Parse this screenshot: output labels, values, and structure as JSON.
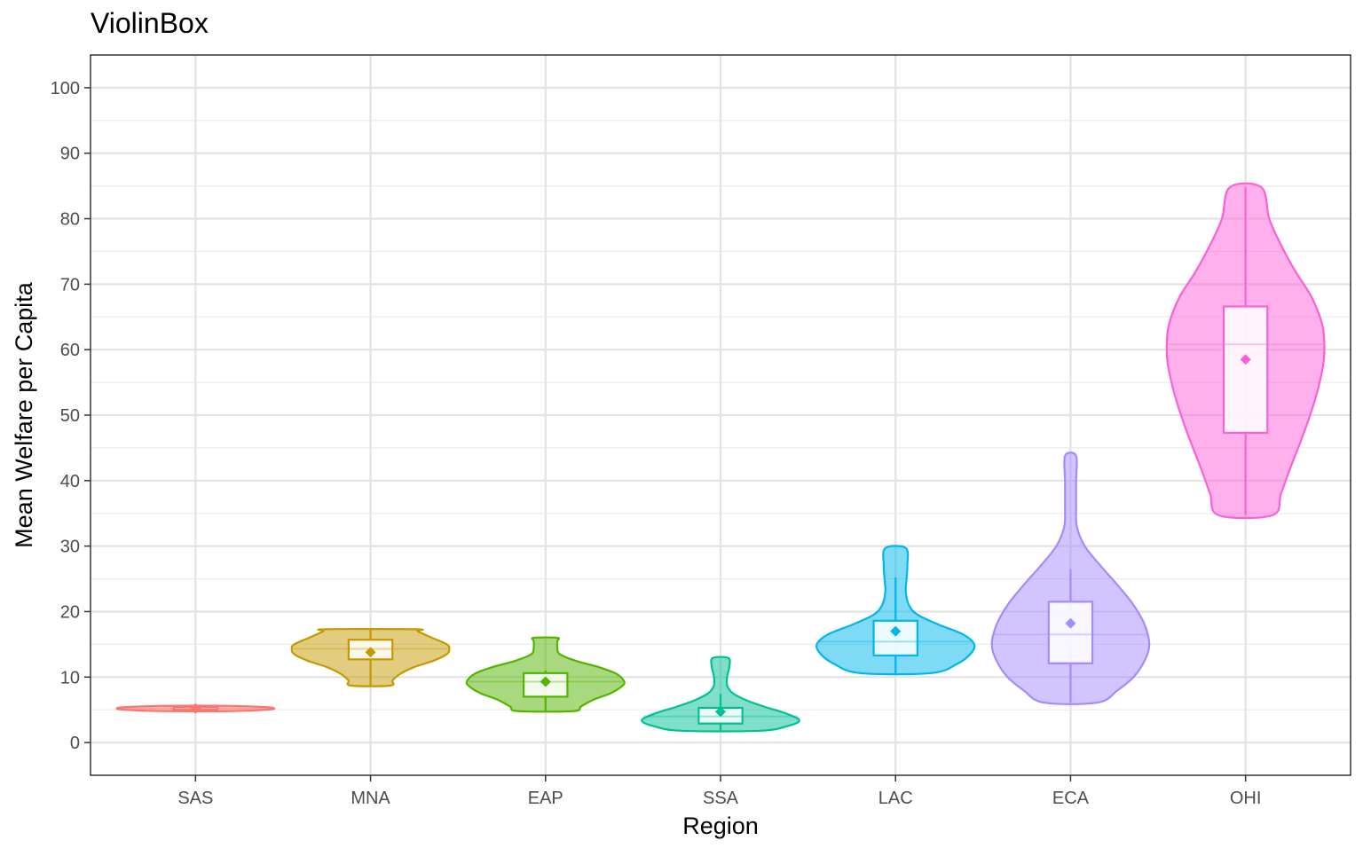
{
  "chart_data": {
    "type": "violin",
    "title": "ViolinBox",
    "xlabel": "Region",
    "ylabel": "Mean Welfare per Capita",
    "categories": [
      "SAS",
      "MNA",
      "EAP",
      "SSA",
      "LAC",
      "ECA",
      "OHI"
    ],
    "ylim": [
      -5,
      105
    ],
    "yticks": [
      0,
      10,
      20,
      30,
      40,
      50,
      60,
      70,
      80,
      90,
      100
    ],
    "grid": true,
    "legend": "none",
    "colors": [
      "#F8766D",
      "#C49A00",
      "#53B400",
      "#00C094",
      "#00B6EB",
      "#A58AFF",
      "#FB61D7"
    ],
    "series": [
      {
        "category": "SAS",
        "violin": {
          "min": 4.8,
          "max": 5.6,
          "median": 5.2,
          "profile": [
            [
              4.8,
              0.45
            ],
            [
              5.0,
              0.9
            ],
            [
              5.2,
              1.0
            ],
            [
              5.4,
              0.9
            ],
            [
              5.6,
              0.45
            ]
          ]
        },
        "box": {
          "q1": 5.0,
          "median": 5.2,
          "q3": 5.4,
          "whisker_low": 4.8,
          "whisker_high": 5.6
        },
        "mean": 5.2
      },
      {
        "category": "MNA",
        "violin": {
          "min": 8.7,
          "max": 17.3,
          "median": 14.3,
          "profile": [
            [
              8.7,
              0.25
            ],
            [
              9.5,
              0.28
            ],
            [
              10.5,
              0.38
            ],
            [
              11.5,
              0.55
            ],
            [
              12.5,
              0.8
            ],
            [
              13.5,
              0.97
            ],
            [
              14.3,
              1.0
            ],
            [
              15.0,
              0.97
            ],
            [
              16.0,
              0.78
            ],
            [
              17.0,
              0.6
            ],
            [
              17.3,
              0.58
            ]
          ]
        },
        "box": {
          "q1": 12.7,
          "median": 14.3,
          "q3": 15.7,
          "whisker_low": 8.7,
          "whisker_high": 17.3
        },
        "mean": 13.8
      },
      {
        "category": "EAP",
        "violin": {
          "min": 4.8,
          "max": 16.0,
          "median": 9.3,
          "profile": [
            [
              4.8,
              0.35
            ],
            [
              5.5,
              0.45
            ],
            [
              6.5,
              0.6
            ],
            [
              7.5,
              0.82
            ],
            [
              8.5,
              0.96
            ],
            [
              9.3,
              1.0
            ],
            [
              10.5,
              0.9
            ],
            [
              11.5,
              0.68
            ],
            [
              12.5,
              0.38
            ],
            [
              13.5,
              0.18
            ],
            [
              14.5,
              0.15
            ],
            [
              15.5,
              0.15
            ],
            [
              16.0,
              0.15
            ]
          ]
        },
        "box": {
          "q1": 7.0,
          "median": 9.3,
          "q3": 10.6,
          "whisker_low": 4.8,
          "whisker_high": 11.0
        },
        "mean": 9.3
      },
      {
        "category": "SSA",
        "violin": {
          "min": 1.8,
          "max": 12.9,
          "median": 4.0,
          "profile": [
            [
              1.8,
              0.5
            ],
            [
              2.5,
              0.85
            ],
            [
              3.4,
              1.0
            ],
            [
              4.5,
              0.82
            ],
            [
              5.5,
              0.55
            ],
            [
              6.5,
              0.32
            ],
            [
              7.5,
              0.16
            ],
            [
              8.5,
              0.09
            ],
            [
              9.5,
              0.08
            ],
            [
              10.5,
              0.09
            ],
            [
              11.5,
              0.11
            ],
            [
              12.9,
              0.1
            ]
          ]
        },
        "box": {
          "q1": 2.9,
          "median": 4.0,
          "q3": 5.3,
          "whisker_low": 1.8,
          "whisker_high": 7.4
        },
        "mean": 4.7
      },
      {
        "category": "LAC",
        "violin": {
          "min": 10.6,
          "max": 29.7,
          "median": 15.4,
          "profile": [
            [
              10.6,
              0.45
            ],
            [
              12.0,
              0.78
            ],
            [
              13.5,
              0.95
            ],
            [
              15.0,
              1.0
            ],
            [
              16.5,
              0.86
            ],
            [
              18.0,
              0.55
            ],
            [
              19.5,
              0.28
            ],
            [
              21.0,
              0.17
            ],
            [
              23.0,
              0.13
            ],
            [
              25.0,
              0.14
            ],
            [
              27.0,
              0.15
            ],
            [
              29.7,
              0.13
            ]
          ]
        },
        "box": {
          "q1": 13.3,
          "median": 15.4,
          "q3": 18.6,
          "whisker_low": 10.6,
          "whisker_high": 25.2
        },
        "mean": 17.0
      },
      {
        "category": "ECA",
        "violin": {
          "min": 6.1,
          "max": 43.8,
          "median": 16.5,
          "profile": [
            [
              6.1,
              0.34
            ],
            [
              8.0,
              0.6
            ],
            [
              10.0,
              0.8
            ],
            [
              12.5,
              0.94
            ],
            [
              15.0,
              1.0
            ],
            [
              18.0,
              0.94
            ],
            [
              21.0,
              0.8
            ],
            [
              24.0,
              0.6
            ],
            [
              27.0,
              0.38
            ],
            [
              30.0,
              0.18
            ],
            [
              33.0,
              0.08
            ],
            [
              36.0,
              0.07
            ],
            [
              40.0,
              0.07
            ],
            [
              43.8,
              0.07
            ]
          ]
        },
        "box": {
          "q1": 12.1,
          "median": 16.5,
          "q3": 21.5,
          "whisker_low": 6.1,
          "whisker_high": 26.5
        },
        "mean": 18.2
      },
      {
        "category": "OHI",
        "violin": {
          "min": 34.7,
          "max": 84.8,
          "median": 60.8,
          "profile": [
            [
              34.7,
              0.34
            ],
            [
              38.0,
              0.45
            ],
            [
              42.0,
              0.57
            ],
            [
              46.0,
              0.7
            ],
            [
              50.0,
              0.82
            ],
            [
              54.0,
              0.92
            ],
            [
              58.0,
              0.99
            ],
            [
              61.0,
              1.0
            ],
            [
              64.0,
              0.97
            ],
            [
              68.0,
              0.84
            ],
            [
              72.0,
              0.63
            ],
            [
              76.0,
              0.45
            ],
            [
              80.0,
              0.3
            ],
            [
              84.8,
              0.2
            ]
          ]
        },
        "box": {
          "q1": 47.3,
          "median": 60.8,
          "q3": 66.6,
          "whisker_low": 34.7,
          "whisker_high": 84.8
        },
        "mean": 58.5
      }
    ]
  }
}
